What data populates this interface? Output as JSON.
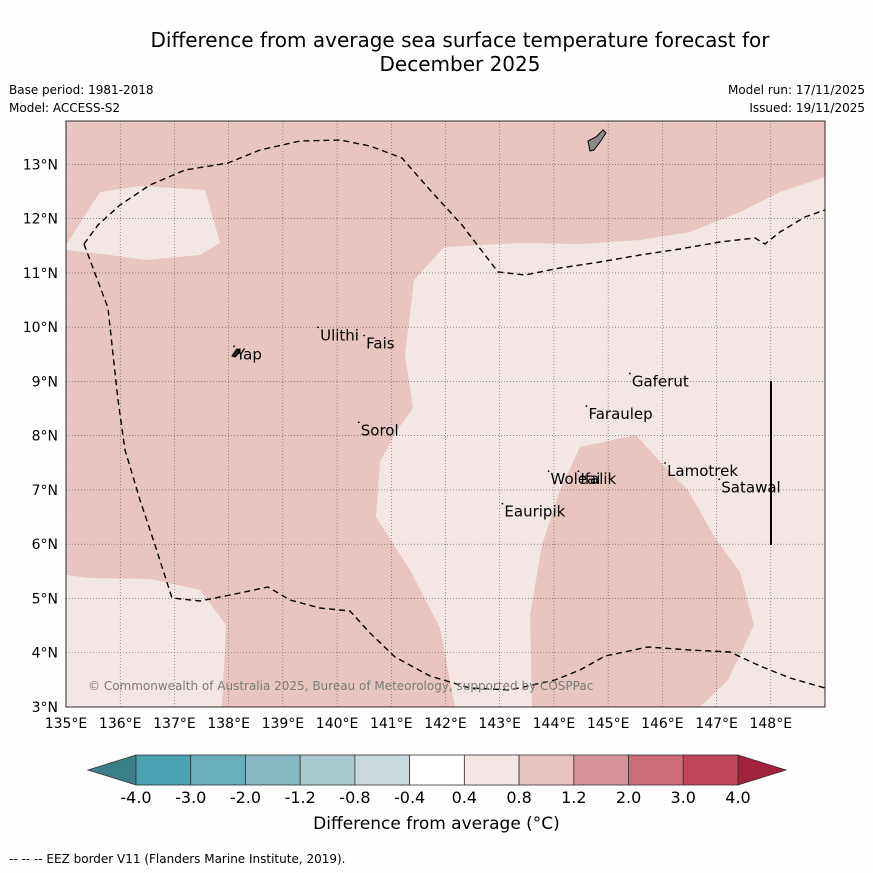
{
  "title_line1": "Difference from average sea surface temperature forecast for",
  "title_line2": "December 2025",
  "base_period": "Base period: 1981-2018",
  "model": "Model: ACCESS-S2",
  "model_run": "Model run: 17/11/2025",
  "issued": "Issued: 19/11/2025",
  "copyright": "© Commonwealth of Australia 2025, Bureau of Meteorology, supported by COSPPac",
  "footnote": "--  --  -- EEZ border V11 (Flanders Marine Institute, 2019).",
  "colorbar_label": "Difference from average (°C)",
  "map_extent": {
    "lon_min": 135,
    "lon_max": 149,
    "lat_min": 3,
    "lat_max": 13.8
  },
  "lon_ticks": [
    {
      "value": 135,
      "label": "135°E"
    },
    {
      "value": 136,
      "label": "136°E"
    },
    {
      "value": 137,
      "label": "137°E"
    },
    {
      "value": 138,
      "label": "138°E"
    },
    {
      "value": 139,
      "label": "139°E"
    },
    {
      "value": 140,
      "label": "140°E"
    },
    {
      "value": 141,
      "label": "141°E"
    },
    {
      "value": 142,
      "label": "142°E"
    },
    {
      "value": 143,
      "label": "143°E"
    },
    {
      "value": 144,
      "label": "144°E"
    },
    {
      "value": 145,
      "label": "145°E"
    },
    {
      "value": 146,
      "label": "146°E"
    },
    {
      "value": 147,
      "label": "147°E"
    },
    {
      "value": 148,
      "label": "148°E"
    }
  ],
  "lat_ticks": [
    {
      "value": 3,
      "label": "3°N"
    },
    {
      "value": 4,
      "label": "4°N"
    },
    {
      "value": 5,
      "label": "5°N"
    },
    {
      "value": 6,
      "label": "6°N"
    },
    {
      "value": 7,
      "label": "7°N"
    },
    {
      "value": 8,
      "label": "8°N"
    },
    {
      "value": 9,
      "label": "9°N"
    },
    {
      "value": 10,
      "label": "10°N"
    },
    {
      "value": 11,
      "label": "11°N"
    },
    {
      "value": 12,
      "label": "12°N"
    },
    {
      "value": 13,
      "label": "13°N"
    }
  ],
  "islands": [
    {
      "name": "Yap",
      "lon": 138.1,
      "lat": 9.5
    },
    {
      "name": "Ulithi",
      "lon": 139.65,
      "lat": 9.85
    },
    {
      "name": "Fais",
      "lon": 140.5,
      "lat": 9.7
    },
    {
      "name": "Gaferut",
      "lon": 145.4,
      "lat": 9.0
    },
    {
      "name": "Faraulep",
      "lon": 144.6,
      "lat": 8.4
    },
    {
      "name": "Sorol",
      "lon": 140.4,
      "lat": 8.1
    },
    {
      "name": "Lamotrek",
      "lon": 146.05,
      "lat": 7.35
    },
    {
      "name": "Satawal",
      "lon": 147.05,
      "lat": 7.05
    },
    {
      "name": "Woleai",
      "lon": 143.9,
      "lat": 7.2
    },
    {
      "name": "Ifalik",
      "lon": 144.45,
      "lat": 7.2
    },
    {
      "name": "Eauripik",
      "lon": 143.05,
      "lat": 6.6
    }
  ],
  "colorbar": {
    "tick_labels": [
      "-4.0",
      "-3.0",
      "-2.0",
      "-1.2",
      "-0.8",
      "-0.4",
      "0.4",
      "0.8",
      "1.2",
      "2.0",
      "3.0",
      "4.0"
    ],
    "under_color": "#3b7f88",
    "over_color": "#a0223e",
    "colors": [
      "#4aa2b1",
      "#6aaebb",
      "#88b8c3",
      "#a9c9d0",
      "#c8d9dd",
      "#ffffff",
      "#f4e6e4",
      "#e8c5c0",
      "#d8949b",
      "#cd6b77",
      "#c04556"
    ]
  },
  "field_colors": {
    "warm_08_12": "#e8c5c0",
    "warm_04_08": "#f4e6e4"
  }
}
